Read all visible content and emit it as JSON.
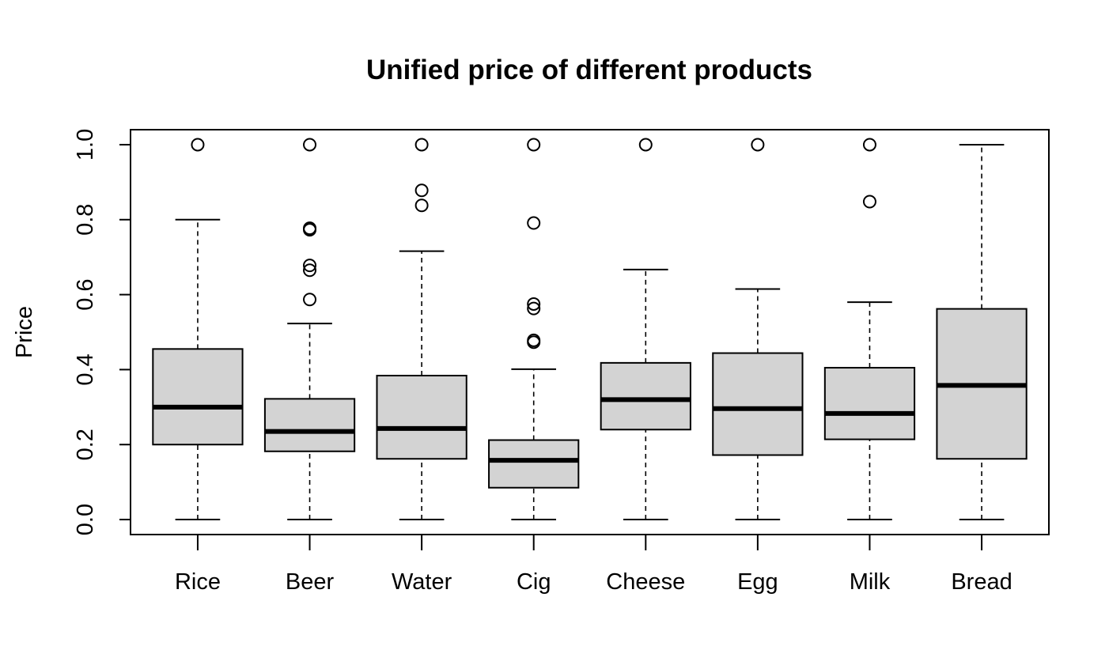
{
  "chart_data": {
    "type": "boxplot",
    "title": "Unified price of different products",
    "xlabel": "",
    "ylabel": "Price",
    "ylim": [
      -0.04,
      1.04
    ],
    "yticks": [
      0.0,
      0.2,
      0.4,
      0.6,
      0.8,
      1.0
    ],
    "ytick_labels": [
      "0.0",
      "0.2",
      "0.4",
      "0.6",
      "0.8",
      "1.0"
    ],
    "grid": false,
    "legend": "none",
    "box_fill": "#d3d3d3",
    "line_color": "#000000",
    "categories": [
      "Rice",
      "Beer",
      "Water",
      "Cig",
      "Cheese",
      "Egg",
      "Milk",
      "Bread"
    ],
    "boxes": [
      {
        "whisker_low": 0.0,
        "q1": 0.2,
        "median": 0.3,
        "q3": 0.455,
        "whisker_high": 0.8,
        "outliers": [
          1.0
        ]
      },
      {
        "whisker_low": 0.0,
        "q1": 0.182,
        "median": 0.235,
        "q3": 0.322,
        "whisker_high": 0.523,
        "outliers": [
          0.587,
          0.665,
          0.678,
          0.773,
          0.777,
          1.0
        ]
      },
      {
        "whisker_low": 0.0,
        "q1": 0.162,
        "median": 0.243,
        "q3": 0.384,
        "whisker_high": 0.716,
        "outliers": [
          0.838,
          0.878,
          1.0
        ]
      },
      {
        "whisker_low": 0.0,
        "q1": 0.085,
        "median": 0.158,
        "q3": 0.212,
        "whisker_high": 0.401,
        "outliers": [
          0.473,
          0.478,
          0.563,
          0.575,
          0.791,
          1.0
        ]
      },
      {
        "whisker_low": 0.0,
        "q1": 0.24,
        "median": 0.32,
        "q3": 0.418,
        "whisker_high": 0.667,
        "outliers": [
          1.0
        ]
      },
      {
        "whisker_low": 0.0,
        "q1": 0.172,
        "median": 0.296,
        "q3": 0.444,
        "whisker_high": 0.615,
        "outliers": [
          1.0
        ]
      },
      {
        "whisker_low": 0.0,
        "q1": 0.214,
        "median": 0.283,
        "q3": 0.405,
        "whisker_high": 0.58,
        "outliers": [
          0.848,
          1.0
        ]
      },
      {
        "whisker_low": 0.0,
        "q1": 0.162,
        "median": 0.358,
        "q3": 0.562,
        "whisker_high": 1.0,
        "outliers": []
      }
    ]
  }
}
